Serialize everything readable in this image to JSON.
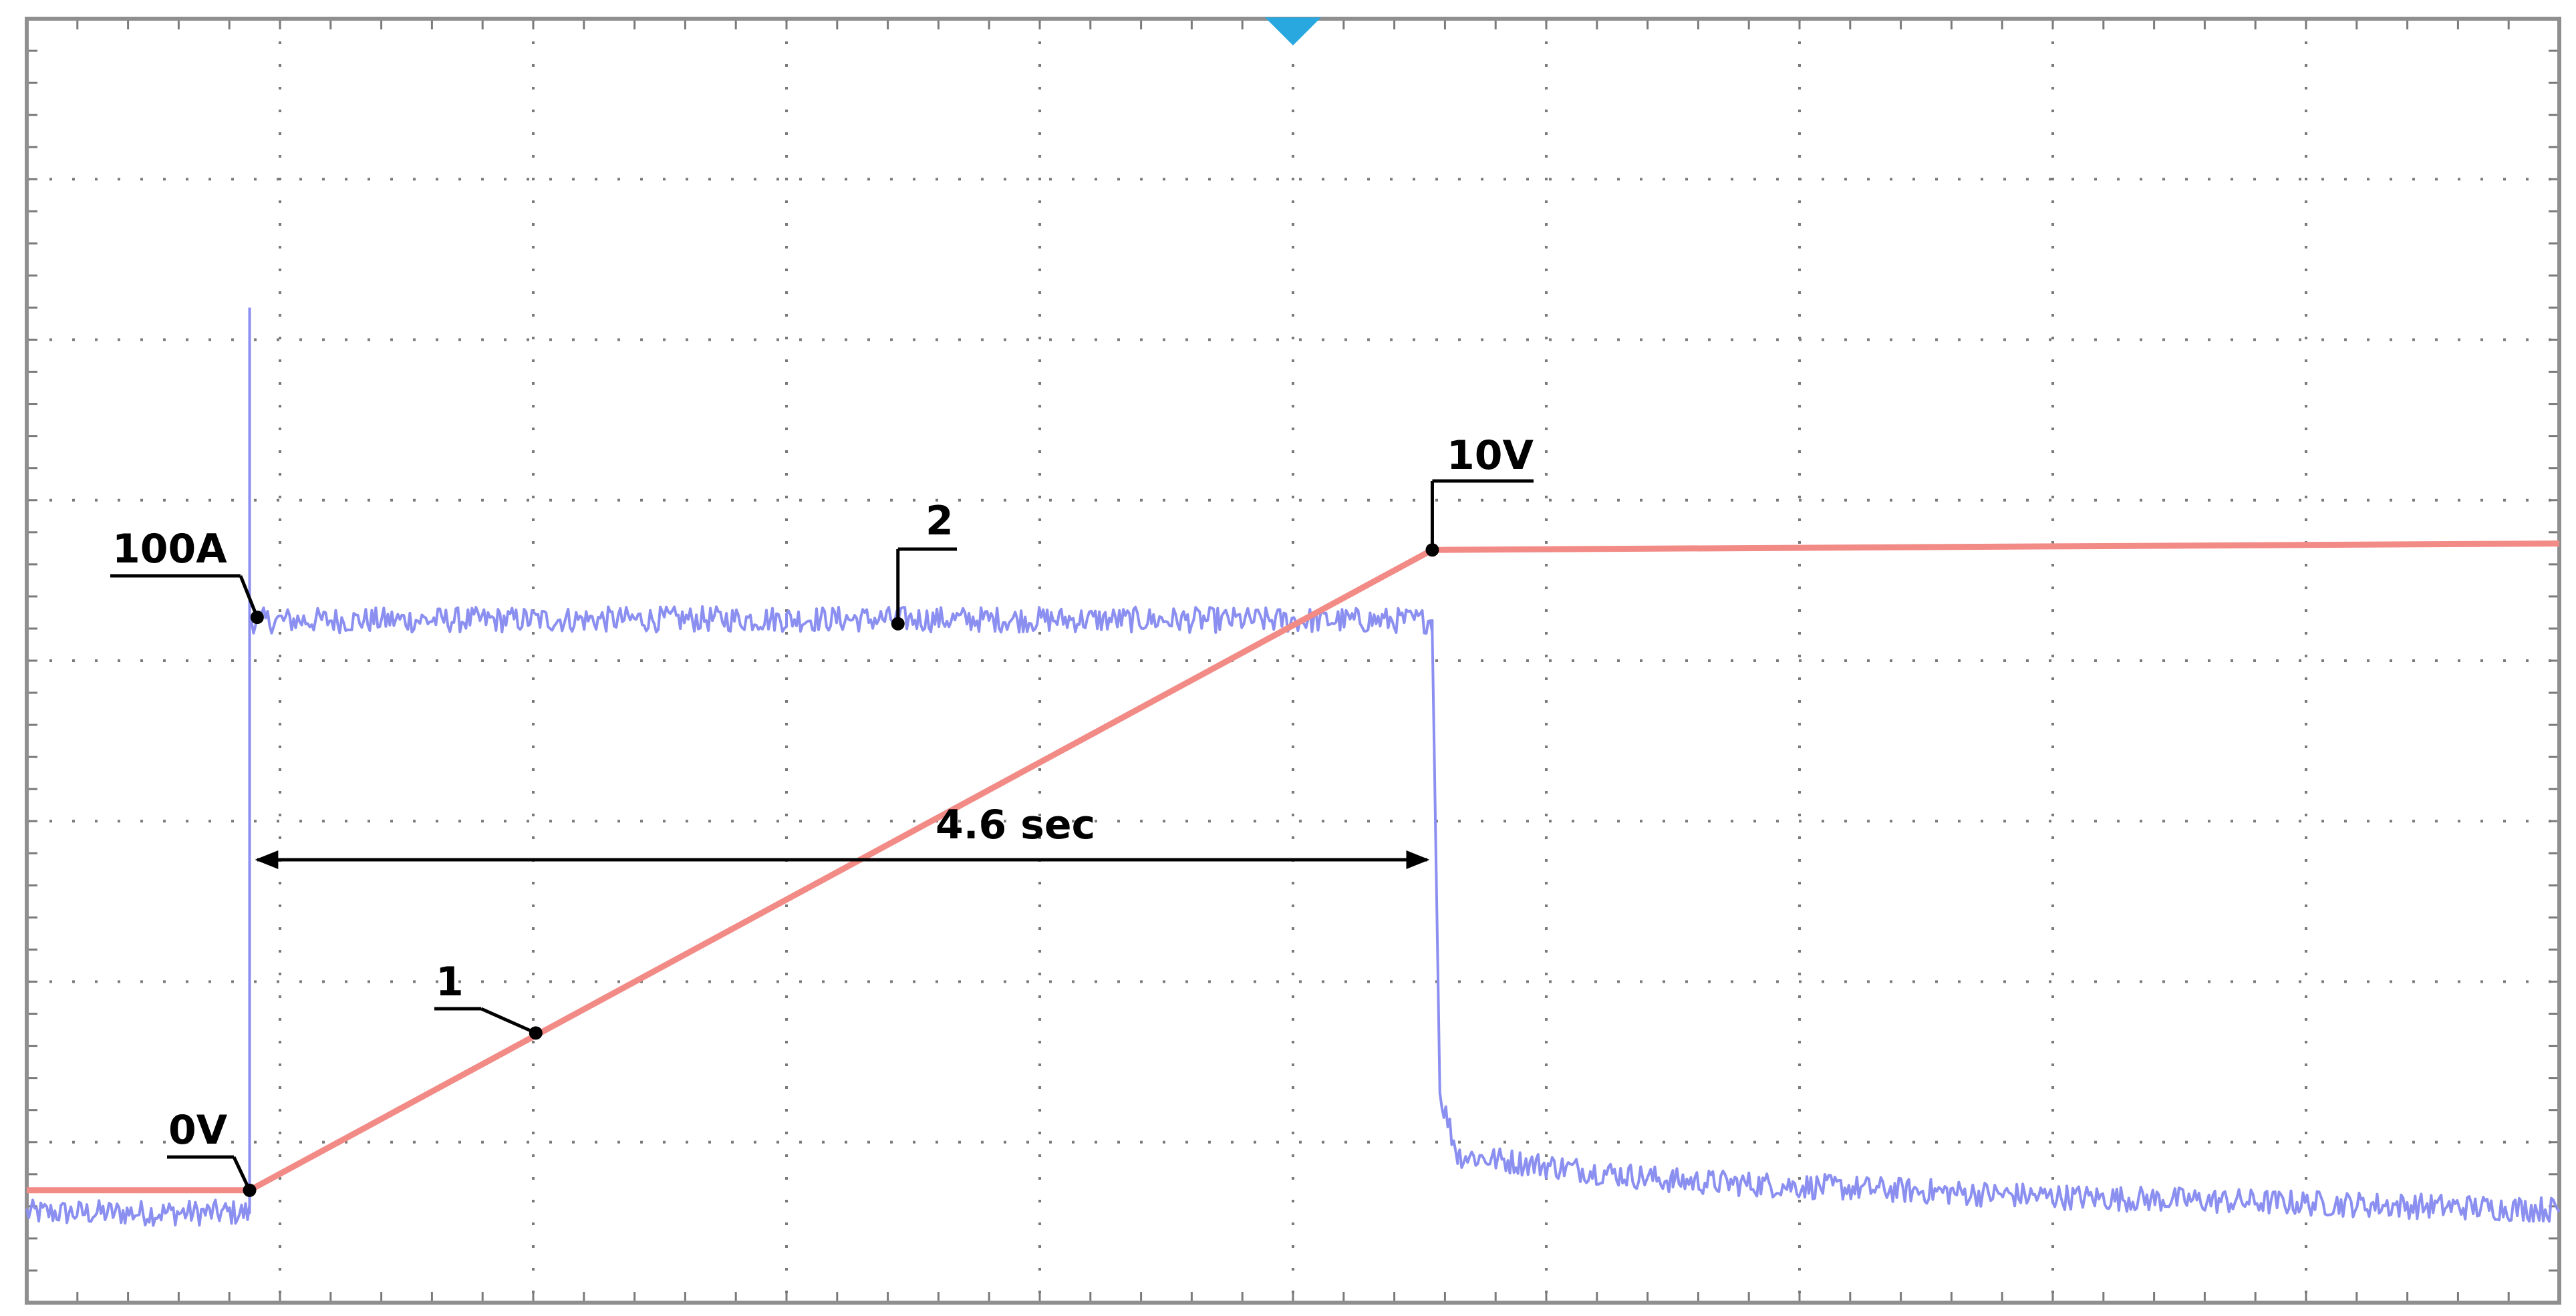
{
  "chart_data": {
    "type": "line",
    "title": "",
    "xlabel": "",
    "ylabel": "",
    "divisions": {
      "x": 10,
      "y": 8
    },
    "xlim": [
      0,
      10
    ],
    "ylim": [
      0,
      8
    ],
    "grid": true,
    "series": [
      {
        "marker_label": "1",
        "color": "#f28a86",
        "points": [
          [
            0,
            0.7
          ],
          [
            0.88,
            0.7
          ],
          [
            5.55,
            4.69
          ],
          [
            10,
            4.73
          ]
        ]
      },
      {
        "marker_label": "2",
        "color": "#8b8ff0",
        "noise": 0.08,
        "points": [
          [
            0,
            0.56
          ],
          [
            0.88,
            0.56
          ],
          [
            0.88,
            4.25
          ],
          [
            3.0,
            4.26
          ],
          [
            5.55,
            4.25
          ],
          [
            5.55,
            4.17
          ],
          [
            5.58,
            1.3
          ],
          [
            5.65,
            0.92
          ],
          [
            6.5,
            0.76
          ],
          [
            8.0,
            0.66
          ],
          [
            10,
            0.58
          ]
        ]
      }
    ],
    "spike": {
      "x": 0.88,
      "y": 6.2
    },
    "markers": [
      {
        "x": 0.88,
        "y": 0.7
      },
      {
        "x": 2.01,
        "y": 1.68
      },
      {
        "x": 3.44,
        "y": 4.23
      },
      {
        "x": 0.91,
        "y": 4.27
      },
      {
        "x": 5.55,
        "y": 4.69
      }
    ],
    "annotations": {
      "zero_v": "0V",
      "ten_v": "10V",
      "hundred_a": "100A",
      "ch1": "1",
      "ch2": "2",
      "duration": "4.6 sec"
    },
    "trigger_color": "#29a8e0",
    "grid_color": "#7a7a7a",
    "border_color": "#8f8f8f"
  }
}
